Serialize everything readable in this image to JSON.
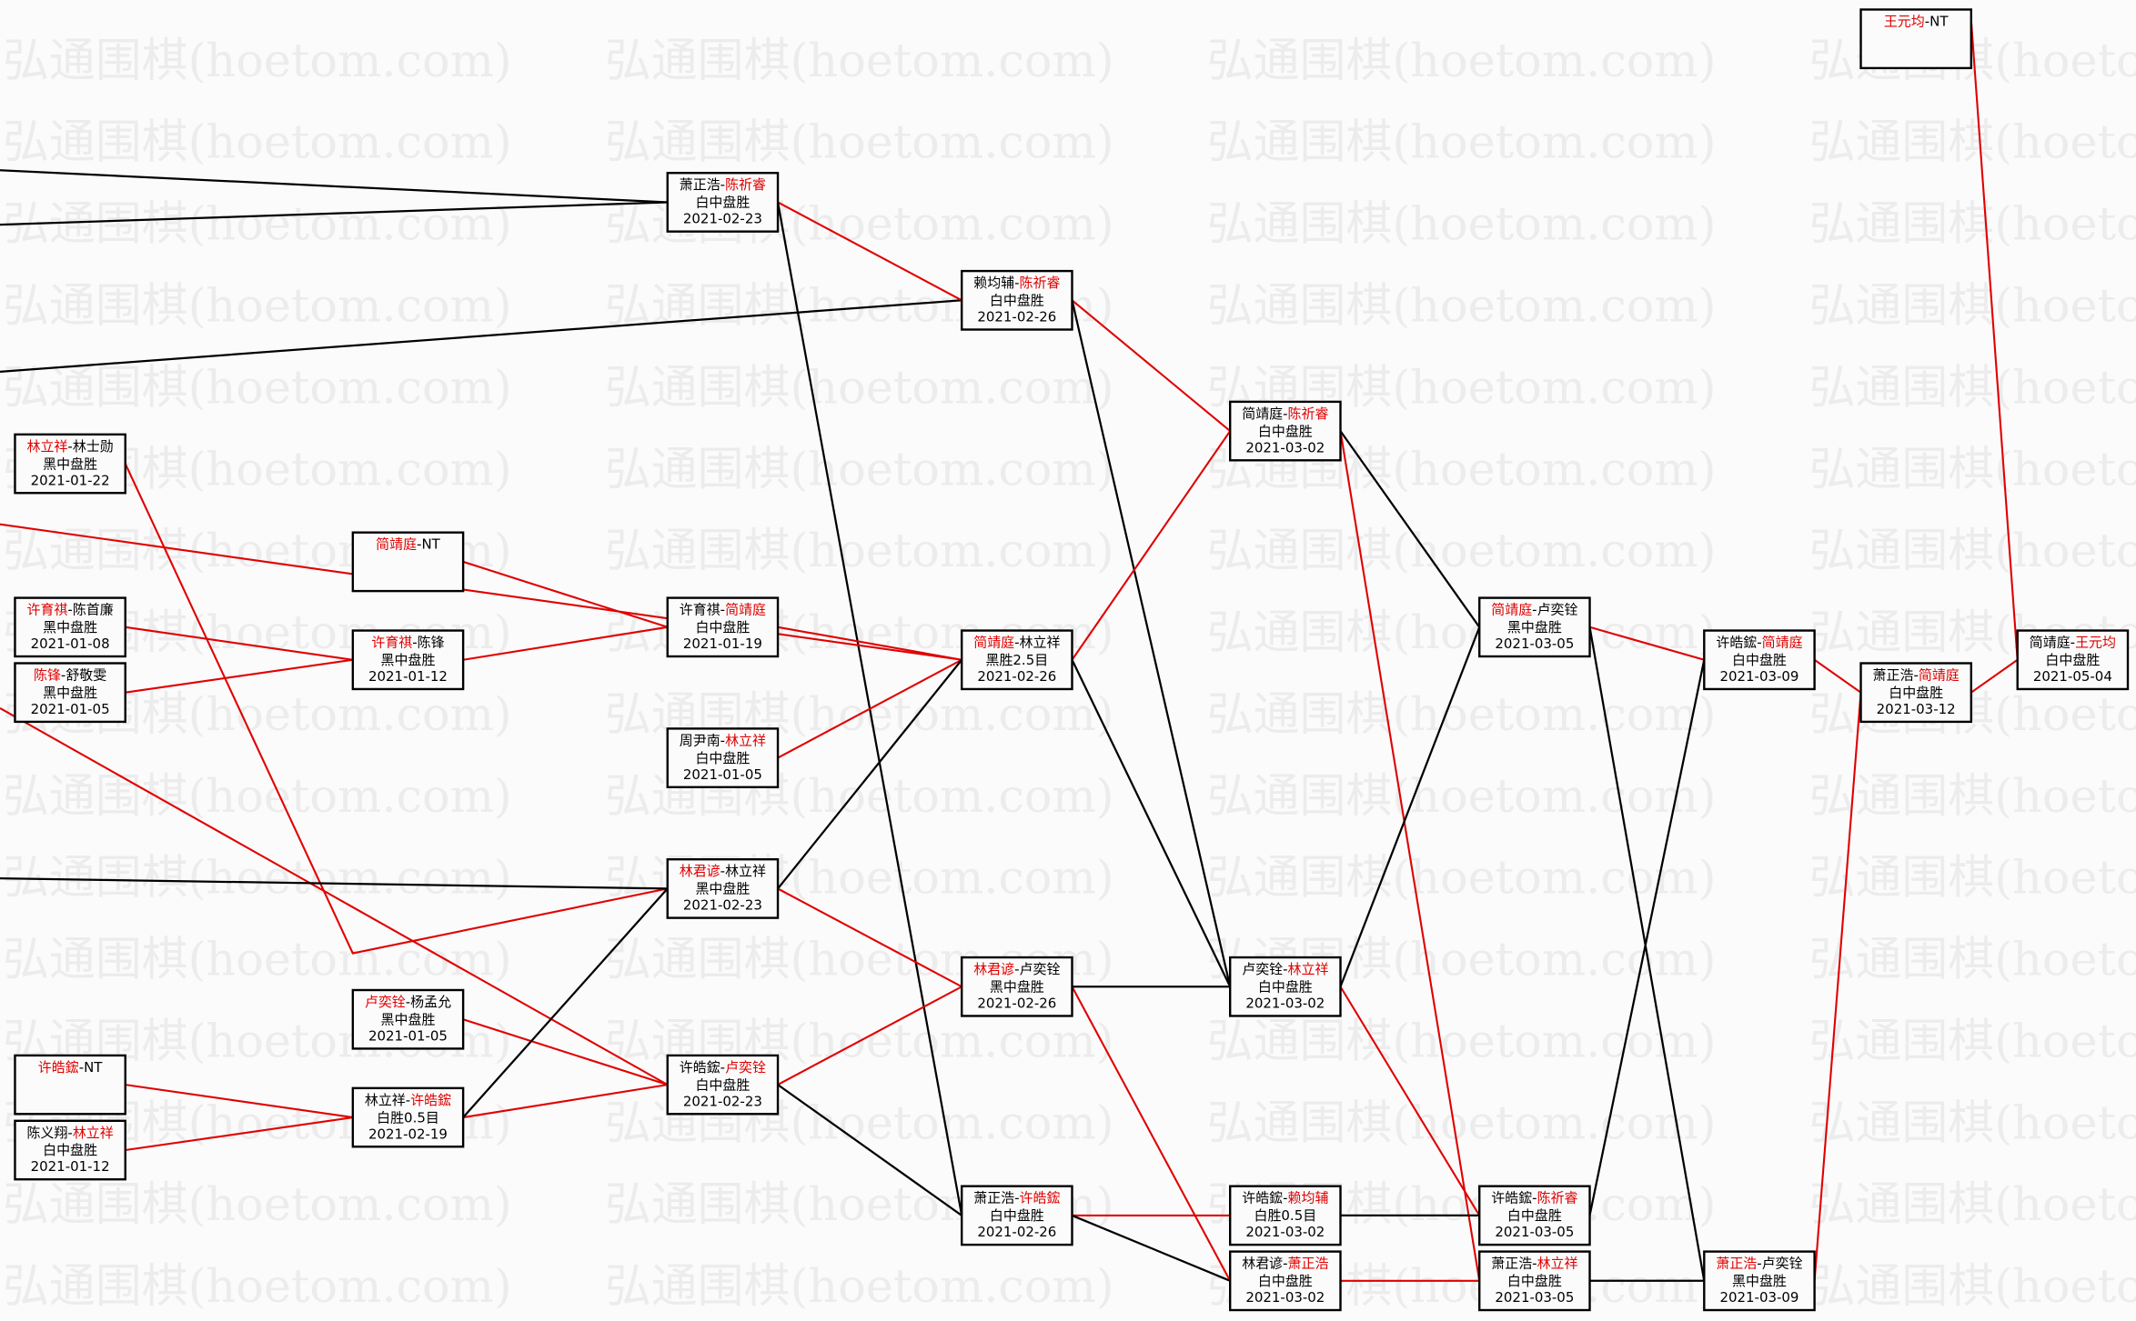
{
  "watermark": "弘通围棋(hoetom.com)",
  "colors": {
    "winner": "#e00000",
    "loser": "#000000",
    "box_border": "#000000"
  },
  "nodes": [
    {
      "p1": "林立祥",
      "p2": "林士勋",
      "winner": 1,
      "result": "黑中盘胜",
      "date": "2021-01-22"
    },
    {
      "p1": "简靖庭",
      "p2": "NT",
      "winner": 1,
      "result": "",
      "date": ""
    },
    {
      "p1": "许育祺",
      "p2": "陈首廉",
      "winner": 1,
      "result": "黑中盘胜",
      "date": "2021-01-08"
    },
    {
      "p1": "陈锋",
      "p2": "舒敬雯",
      "winner": 1,
      "result": "黑中盘胜",
      "date": "2021-01-05"
    },
    {
      "p1": "许育祺",
      "p2": "陈锋",
      "winner": 1,
      "result": "黑中盘胜",
      "date": "2021-01-12"
    },
    {
      "p1": "许育祺",
      "p2": "简靖庭",
      "winner": 2,
      "result": "白中盘胜",
      "date": "2021-01-19"
    },
    {
      "p1": "周尹南",
      "p2": "林立祥",
      "winner": 2,
      "result": "白中盘胜",
      "date": "2021-01-05"
    },
    {
      "p1": "萧正浩",
      "p2": "陈祈睿",
      "winner": 2,
      "result": "白中盘胜",
      "date": "2021-02-23"
    },
    {
      "p1": "林君谚",
      "p2": "林立祥",
      "winner": 1,
      "result": "黑中盘胜",
      "date": "2021-02-23"
    },
    {
      "p1": "卢奕铨",
      "p2": "杨孟允",
      "winner": 1,
      "result": "黑中盘胜",
      "date": "2021-01-05"
    },
    {
      "p1": "许皓鋐",
      "p2": "NT",
      "winner": 1,
      "result": "",
      "date": ""
    },
    {
      "p1": "陈义翔",
      "p2": "林立祥",
      "winner": 2,
      "result": "白中盘胜",
      "date": "2021-01-12"
    },
    {
      "p1": "林立祥",
      "p2": "许皓鋐",
      "winner": 2,
      "result": "白胜0.5目",
      "date": "2021-02-19"
    },
    {
      "p1": "许皓鋐",
      "p2": "卢奕铨",
      "winner": 2,
      "result": "白中盘胜",
      "date": "2021-02-23"
    },
    {
      "p1": "赖均辅",
      "p2": "陈祈睿",
      "winner": 2,
      "result": "白中盘胜",
      "date": "2021-02-26"
    },
    {
      "p1": "简靖庭",
      "p2": "林立祥",
      "winner": 1,
      "result": "黑胜2.5目",
      "date": "2021-02-26"
    },
    {
      "p1": "林君谚",
      "p2": "卢奕铨",
      "winner": 1,
      "result": "黑中盘胜",
      "date": "2021-02-26"
    },
    {
      "p1": "萧正浩",
      "p2": "许皓鋐",
      "winner": 2,
      "result": "白中盘胜",
      "date": "2021-02-26"
    },
    {
      "p1": "简靖庭",
      "p2": "陈祈睿",
      "winner": 2,
      "result": "白中盘胜",
      "date": "2021-03-02"
    },
    {
      "p1": "卢奕铨",
      "p2": "林立祥",
      "winner": 2,
      "result": "白中盘胜",
      "date": "2021-03-02"
    },
    {
      "p1": "许皓鋐",
      "p2": "赖均辅",
      "winner": 2,
      "result": "白胜0.5目",
      "date": "2021-03-02"
    },
    {
      "p1": "林君谚",
      "p2": "萧正浩",
      "winner": 2,
      "result": "白中盘胜",
      "date": "2021-03-02"
    },
    {
      "p1": "简靖庭",
      "p2": "卢奕铨",
      "winner": 1,
      "result": "黑中盘胜",
      "date": "2021-03-05"
    },
    {
      "p1": "许皓鋐",
      "p2": "陈祈睿",
      "winner": 2,
      "result": "白中盘胜",
      "date": "2021-03-05"
    },
    {
      "p1": "萧正浩",
      "p2": "林立祥",
      "winner": 2,
      "result": "白中盘胜",
      "date": "2021-03-05"
    },
    {
      "p1": "许皓鋐",
      "p2": "简靖庭",
      "winner": 2,
      "result": "白中盘胜",
      "date": "2021-03-09"
    },
    {
      "p1": "萧正浩",
      "p2": "卢奕铨",
      "winner": 1,
      "result": "黑中盘胜",
      "date": "2021-03-09"
    },
    {
      "p1": "萧正浩",
      "p2": "简靖庭",
      "winner": 2,
      "result": "白中盘胜",
      "date": "2021-03-12"
    },
    {
      "p1": "简靖庭",
      "p2": "王元均",
      "winner": 2,
      "result": "白中盘胜",
      "date": "2021-05-04"
    },
    {
      "p1": "王元均",
      "p2": "NT",
      "winner": 1,
      "result": "",
      "date": ""
    }
  ],
  "edges": [
    {
      "from": null,
      "to": 7,
      "winner": false
    },
    {
      "from": null,
      "to": 7,
      "winner": false
    },
    {
      "from": null,
      "to": 14,
      "winner": false
    },
    {
      "from": 7,
      "to": 14,
      "winner": true
    },
    {
      "from": 7,
      "to": 17,
      "winner": false
    },
    {
      "from": 14,
      "to": 18,
      "winner": true
    },
    {
      "from": 14,
      "to": 19,
      "winner": false
    },
    {
      "from": 0,
      "to": 8,
      "winner": true
    },
    {
      "from": null,
      "to": 15,
      "winner": true
    },
    {
      "from": 1,
      "to": 5,
      "winner": true
    },
    {
      "from": 5,
      "to": 15,
      "winner": true
    },
    {
      "from": 6,
      "to": 15,
      "winner": true
    },
    {
      "from": 8,
      "to": 15,
      "winner": false
    },
    {
      "from": 2,
      "to": 4,
      "winner": true
    },
    {
      "from": 3,
      "to": 4,
      "winner": true
    },
    {
      "from": 4,
      "to": 5,
      "winner": true
    },
    {
      "from": null,
      "to": 13,
      "winner": true
    },
    {
      "from": null,
      "to": 8,
      "winner": false
    },
    {
      "from": 9,
      "to": 13,
      "winner": true
    },
    {
      "from": 12,
      "to": 13,
      "winner": true
    },
    {
      "from": 12,
      "to": 8,
      "winner": false
    },
    {
      "from": 10,
      "to": 12,
      "winner": true
    },
    {
      "from": 11,
      "to": 12,
      "winner": true
    },
    {
      "from": 8,
      "to": 16,
      "winner": true
    },
    {
      "from": 13,
      "to": 16,
      "winner": true
    },
    {
      "from": 13,
      "to": 17,
      "winner": false
    },
    {
      "from": 15,
      "to": 18,
      "winner": true
    },
    {
      "from": 15,
      "to": 19,
      "winner": false
    },
    {
      "from": 16,
      "to": 19,
      "winner": false
    },
    {
      "from": 16,
      "to": 21,
      "winner": true
    },
    {
      "from": 17,
      "to": 20,
      "winner": true
    },
    {
      "from": 17,
      "to": 21,
      "winner": false
    },
    {
      "from": 18,
      "to": 22,
      "winner": false
    },
    {
      "from": 18,
      "to": 24,
      "winner": true
    },
    {
      "from": 19,
      "to": 22,
      "winner": false
    },
    {
      "from": 19,
      "to": 23,
      "winner": true
    },
    {
      "from": 20,
      "to": 23,
      "winner": false
    },
    {
      "from": 21,
      "to": 24,
      "winner": true
    },
    {
      "from": 22,
      "to": 25,
      "winner": true
    },
    {
      "from": 22,
      "to": 26,
      "winner": false
    },
    {
      "from": 23,
      "to": 25,
      "winner": false
    },
    {
      "from": 24,
      "to": 26,
      "winner": false
    },
    {
      "from": 25,
      "to": 27,
      "winner": true
    },
    {
      "from": 26,
      "to": 27,
      "winner": true
    },
    {
      "from": 27,
      "to": 28,
      "winner": true
    },
    {
      "from": 29,
      "to": 28,
      "winner": true
    }
  ]
}
